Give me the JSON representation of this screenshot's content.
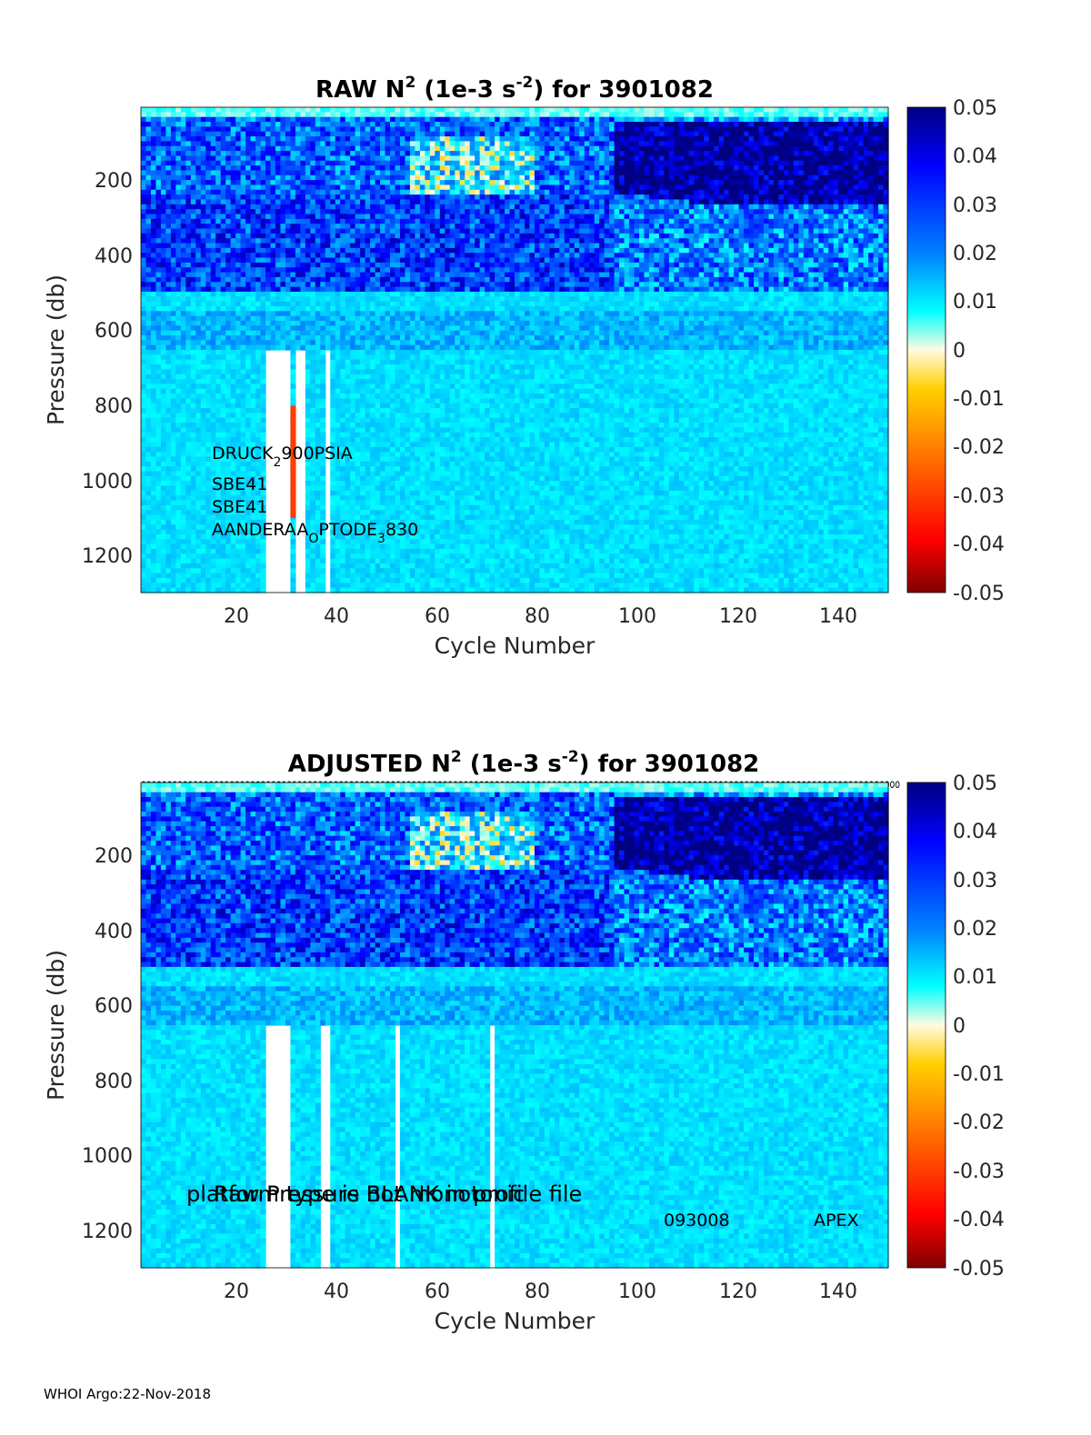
{
  "chart_data": [
    {
      "type": "heatmap",
      "title_prefix": "RAW N",
      "title_sup1": "2",
      "title_mid": " (1e-3 s",
      "title_sup2": "-2",
      "title_suffix": ") for 3901082",
      "xlabel": "Cycle Number",
      "ylabel": "Pressure (db)",
      "xlim": [
        1,
        150
      ],
      "ylim": [
        1300,
        0
      ],
      "xticks": [
        "20",
        "40",
        "60",
        "80",
        "100",
        "120",
        "140"
      ],
      "yticks": [
        "200",
        "400",
        "600",
        "800",
        "1000",
        "1200"
      ],
      "colorbar": {
        "range": [
          -0.05,
          0.05
        ],
        "ticks": [
          "0.05",
          "0.04",
          "0.03",
          "0.02",
          "0.01",
          "0",
          "-0.01",
          "-0.02",
          "-0.03",
          "-0.04",
          "-0.05"
        ]
      },
      "annotations": {
        "druck_base": "DRUCK",
        "druck_sub": "2",
        "druck_rest": "900PSIA",
        "sbe1": "SBE41",
        "sbe2": "SBE41",
        "aanderaa_base": "AANDERAA",
        "aanderaa_sub": "O",
        "aanderaa_mid": "PTODE",
        "aanderaa_sub2": "3",
        "aanderaa_rest": "830"
      },
      "structure": {
        "surface_layer_top_db": 20,
        "high_N2_zone_db": [
          30,
          500
        ],
        "thermocline_deepening_after_cycle": 95,
        "missing_cycles": [
          26,
          27,
          28,
          29,
          30,
          32,
          33,
          38
        ],
        "negative_spike_cycle": 31,
        "negative_spike_db": [
          800,
          1100
        ],
        "negative_spike_value": -0.03
      }
    },
    {
      "type": "heatmap",
      "title_prefix": "ADJUSTED N",
      "title_sup1": "2",
      "title_mid": " (1e-3 s",
      "title_sup2": "-2",
      "title_suffix": ") for 3901082",
      "xlabel": "Cycle Number",
      "ylabel": "Pressure (db)",
      "xlim": [
        1,
        150
      ],
      "ylim": [
        1300,
        0
      ],
      "xticks": [
        "20",
        "40",
        "60",
        "80",
        "100",
        "120",
        "140"
      ],
      "yticks": [
        "200",
        "400",
        "600",
        "800",
        "1000",
        "1200"
      ],
      "colorbar": {
        "range": [
          -0.05,
          0.05
        ],
        "ticks": [
          "0.05",
          "0.04",
          "0.03",
          "0.02",
          "0.01",
          "0",
          "-0.01",
          "-0.02",
          "-0.03",
          "-0.04",
          "-0.05"
        ]
      },
      "annotations": {
        "overlap_text_1": "platform type is BLANK in profile file",
        "overlap_text_2": "Raw Pressure not monotonic",
        "serial": "093008",
        "platform": "APEX"
      },
      "qc_marker_row": "oooooooooooooooooooooooooooooooooooooooooooooooooooooooooooooooooooooooooooooooooooooooooooooooooooooooooooooooooooooooooooooooooooooooooooooooooo",
      "structure": {
        "missing_cycles": [
          26,
          27,
          28,
          29,
          30,
          37,
          38,
          52,
          71
        ]
      }
    }
  ],
  "footer": "WHOI Argo:22-Nov-2018"
}
